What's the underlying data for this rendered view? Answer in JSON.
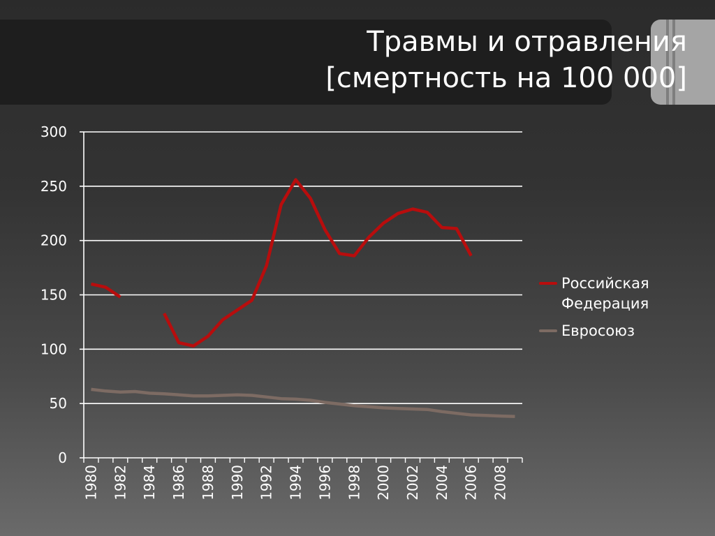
{
  "title": {
    "line1": "Травмы и отравления",
    "line2": "[смертность на 100 000]"
  },
  "colors": {
    "russia": "#b80d0d",
    "eu": "#7d6b63",
    "axis": "#ffffff",
    "grid": "#ffffff",
    "text": "#ffffff"
  },
  "chart_data": {
    "type": "line",
    "x": [
      1980,
      1981,
      1982,
      1983,
      1984,
      1985,
      1986,
      1987,
      1988,
      1989,
      1990,
      1991,
      1992,
      1993,
      1994,
      1995,
      1996,
      1997,
      1998,
      1999,
      2000,
      2001,
      2002,
      2003,
      2004,
      2005,
      2006,
      2007,
      2008,
      2009
    ],
    "x_tick_labels": [
      "1980",
      "1982",
      "1984",
      "1986",
      "1988",
      "1990",
      "1992",
      "1994",
      "1996",
      "1998",
      "2000",
      "2002",
      "2004",
      "2006",
      "2008"
    ],
    "ylim": [
      0,
      300
    ],
    "y_ticks": [
      0,
      50,
      100,
      150,
      200,
      250,
      300
    ],
    "grid": true,
    "legend_position": "right",
    "series": [
      {
        "name": "Российская Федерация",
        "color": "#b80d0d",
        "values": [
          160,
          157,
          148,
          null,
          null,
          133,
          106,
          103,
          112,
          127,
          136,
          145,
          177,
          233,
          256,
          239,
          210,
          188,
          186,
          203,
          216,
          225,
          229,
          226,
          212,
          211,
          186,
          null,
          null,
          null
        ]
      },
      {
        "name": "Евросоюз",
        "color": "#7d6b63",
        "values": [
          63,
          61.5,
          60.5,
          61,
          59.5,
          59,
          58,
          57,
          57,
          57.5,
          58,
          57.5,
          56,
          54.5,
          54,
          53,
          51,
          49.5,
          48,
          47,
          46,
          45.5,
          45,
          44.5,
          42.5,
          41,
          39.5,
          39,
          38.5,
          38
        ]
      }
    ]
  }
}
